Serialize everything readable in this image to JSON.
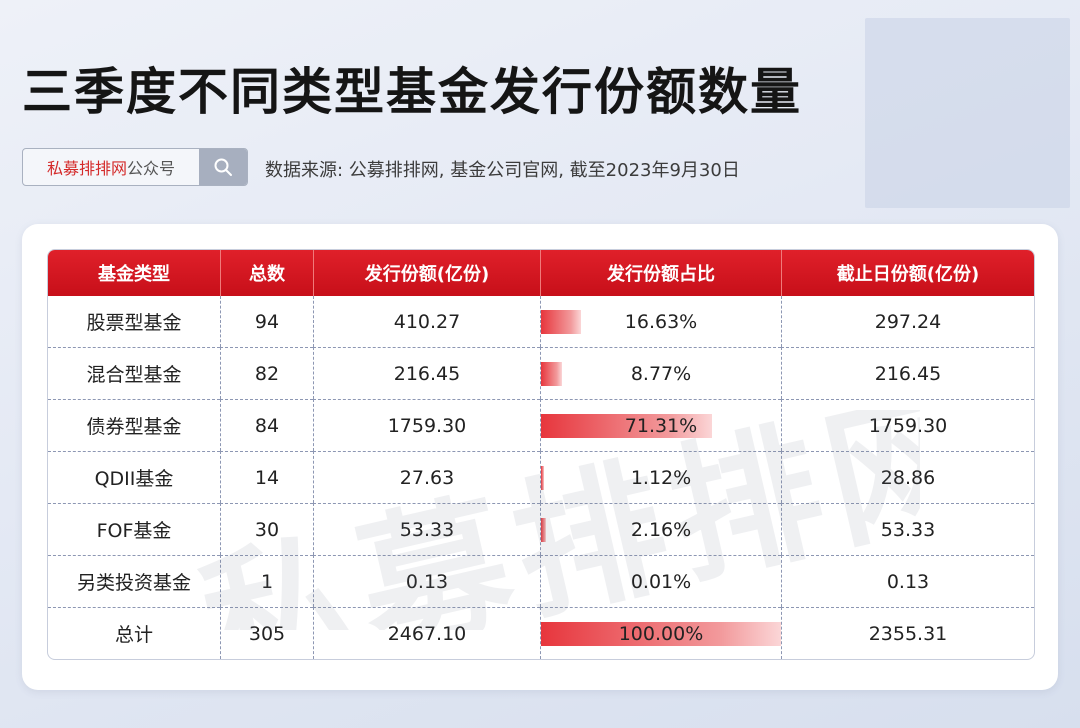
{
  "header": {
    "title": "三季度不同类型基金发行份额数量",
    "brand_red": "私募排排网",
    "brand_gray": "公众号",
    "search_icon": "search-icon",
    "source": "数据来源: 公募排排网, 基金公司官网, 截至2023年9月30日"
  },
  "watermark": "私募排排网",
  "colors": {
    "header_red": "#d4151e",
    "bar_red": "#e7363d",
    "bar_light": "#fbd6d7"
  },
  "chart_data": {
    "type": "table",
    "columns": [
      "基金类型",
      "总数",
      "发行份额(亿份)",
      "发行份额占比",
      "截止日份额(亿份)"
    ],
    "rows": [
      {
        "type": "股票型基金",
        "count": "94",
        "issued": "410.27",
        "share": "16.63%",
        "share_value": 16.63,
        "end": "297.24"
      },
      {
        "type": "混合型基金",
        "count": "82",
        "issued": "216.45",
        "share": "8.77%",
        "share_value": 8.77,
        "end": "216.45"
      },
      {
        "type": "债券型基金",
        "count": "84",
        "issued": "1759.30",
        "share": "71.31%",
        "share_value": 71.31,
        "end": "1759.30"
      },
      {
        "type": "QDII基金",
        "count": "14",
        "issued": "27.63",
        "share": "1.12%",
        "share_value": 1.12,
        "end": "28.86"
      },
      {
        "type": "FOF基金",
        "count": "30",
        "issued": "53.33",
        "share": "2.16%",
        "share_value": 2.16,
        "end": "53.33"
      },
      {
        "type": "另类投资基金",
        "count": "1",
        "issued": "0.13",
        "share": "0.01%",
        "share_value": 0.01,
        "end": "0.13"
      },
      {
        "type": "总计",
        "count": "305",
        "issued": "2467.10",
        "share": "100.00%",
        "share_value": 100,
        "end": "2355.31"
      }
    ]
  }
}
